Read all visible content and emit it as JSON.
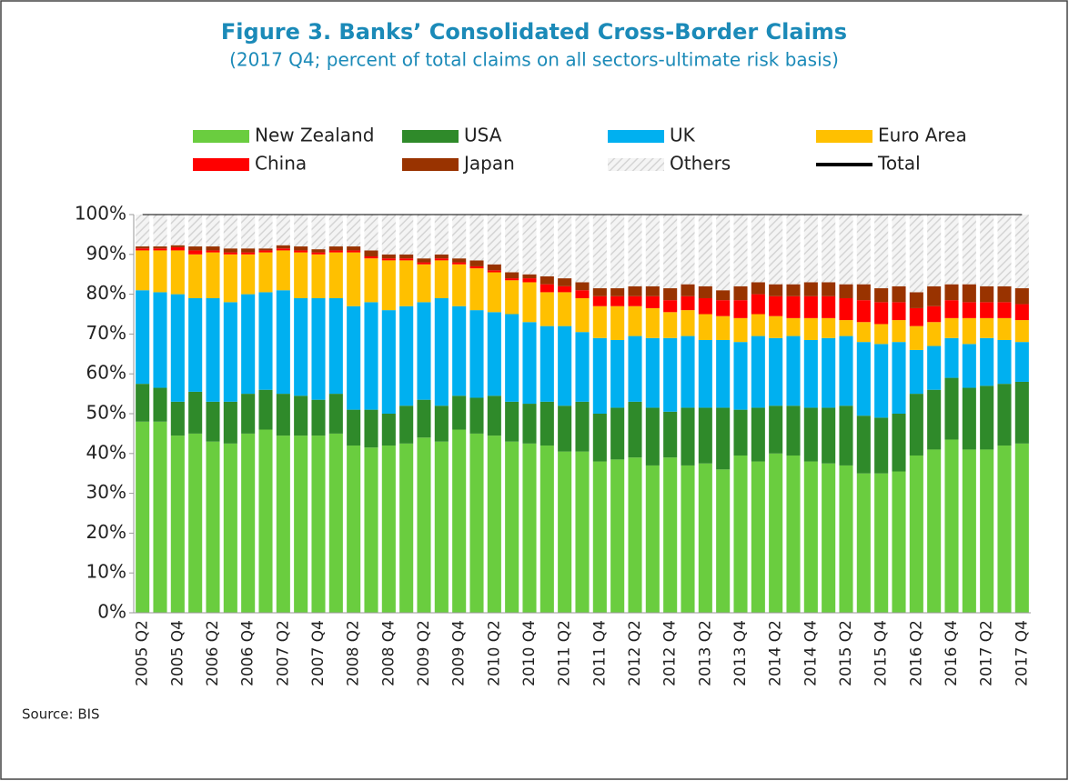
{
  "chart_data": {
    "type": "stacked_bar",
    "title": "Figure 3. Banks’ Consolidated Cross-Border Claims",
    "subtitle": "(2017 Q4; percent of total claims on all sectors-ultimate risk basis)",
    "source": "Source: BIS",
    "categories": [
      "2005 Q2",
      null,
      "2005 Q4",
      null,
      "2006 Q2",
      null,
      "2006 Q4",
      null,
      "2007 Q2",
      null,
      "2007 Q4",
      null,
      "2008 Q2",
      null,
      "2008 Q4",
      null,
      "2009 Q2",
      null,
      "2009 Q4",
      null,
      "2010 Q2",
      null,
      "2010 Q4",
      null,
      "2011 Q2",
      null,
      "2011 Q4",
      null,
      "2012 Q2",
      null,
      "2012 Q4",
      null,
      "2013 Q2",
      null,
      "2013 Q4",
      null,
      "2014 Q2",
      null,
      "2014 Q4",
      null,
      "2015 Q2",
      null,
      "2015 Q4",
      null,
      "2016 Q2",
      null,
      "2016 Q4",
      null,
      "2017 Q2",
      null,
      "2017 Q4"
    ],
    "ylim": [
      0,
      100
    ],
    "yticks": [
      {
        "value": 0,
        "label": "0%"
      },
      {
        "value": 10,
        "label": "10%"
      },
      {
        "value": 20,
        "label": "20%"
      },
      {
        "value": 30,
        "label": "30%"
      },
      {
        "value": 40,
        "label": "40%"
      },
      {
        "value": 50,
        "label": "50%"
      },
      {
        "value": 60,
        "label": "60%"
      },
      {
        "value": 70,
        "label": "70%"
      },
      {
        "value": 80,
        "label": "80%"
      },
      {
        "value": 90,
        "label": "90%"
      },
      {
        "value": 100,
        "label": "100%"
      }
    ],
    "legend": "top",
    "series": [
      {
        "name": "New Zealand",
        "color": "#6acd3f",
        "values": [
          48,
          48,
          44.5,
          45,
          43,
          42.5,
          45,
          46,
          44.5,
          44.5,
          44.5,
          45,
          42,
          41.5,
          42,
          42.5,
          44,
          43,
          46,
          45,
          44.5,
          43,
          42.5,
          42,
          40.5,
          40.5,
          38,
          38.5,
          39,
          37,
          39,
          37,
          37.5,
          36,
          39.5,
          38,
          40,
          39.5,
          38,
          37.5,
          37,
          35,
          35,
          35.5,
          39.5,
          41,
          43.5,
          41,
          41,
          42,
          42.5
        ]
      },
      {
        "name": "USA",
        "color": "#2f8a2a",
        "values": [
          9.5,
          8.5,
          8.5,
          10.5,
          10,
          10.5,
          10,
          10,
          10.5,
          10,
          9,
          10,
          9,
          9.5,
          8,
          9.5,
          9.5,
          9,
          8.5,
          9,
          10,
          10,
          10,
          11,
          11.5,
          12.5,
          12,
          13,
          14,
          14.5,
          11.5,
          14.5,
          14,
          15.5,
          11.5,
          13.5,
          12,
          12.5,
          13.5,
          14,
          15,
          14.5,
          14,
          14.5,
          15.5,
          15,
          15.5,
          15.5,
          16,
          15.5,
          15.5
        ]
      },
      {
        "name": "UK",
        "color": "#00b0f0",
        "values": [
          23.5,
          24,
          27,
          23.5,
          26,
          25,
          25,
          24.5,
          26,
          24.5,
          25.5,
          24,
          26,
          27,
          26,
          25,
          24.5,
          27,
          22.5,
          22,
          21,
          22,
          20.5,
          19,
          20,
          17.5,
          19,
          17,
          16.5,
          17.5,
          18.5,
          18,
          17,
          17,
          17,
          18,
          17,
          17.5,
          17,
          17.5,
          17.5,
          18.5,
          18.5,
          18,
          11,
          11,
          10,
          11,
          12,
          11,
          10
        ]
      },
      {
        "name": "Euro Area",
        "color": "#ffc000",
        "values": [
          10,
          10.5,
          11,
          11,
          11.5,
          12,
          10,
          10,
          10,
          11.5,
          11,
          11.5,
          13.5,
          11,
          12.5,
          11.5,
          9.5,
          9.5,
          10.5,
          10.5,
          10,
          8.5,
          10,
          8.5,
          8.5,
          8.5,
          8,
          8.5,
          7.5,
          7.5,
          6.5,
          6.5,
          6.5,
          6,
          6,
          5.5,
          5.5,
          4.5,
          5.5,
          5,
          4,
          5,
          5,
          5.5,
          6,
          6,
          5,
          6.5,
          5,
          5.5,
          5.5
        ]
      },
      {
        "name": "China",
        "color": "#ff0000",
        "values": [
          0.5,
          0.5,
          0.8,
          1,
          0.5,
          0.5,
          0.5,
          0.5,
          0.5,
          0.5,
          0.5,
          0.5,
          0.5,
          0.5,
          0.5,
          0.5,
          0.5,
          0.5,
          0.5,
          0.5,
          0.5,
          0.5,
          1,
          2,
          1.5,
          2,
          2.5,
          2.5,
          2.5,
          3,
          3,
          3.5,
          4,
          4,
          4.5,
          5,
          5,
          5.5,
          5.5,
          5.5,
          5.5,
          5.5,
          5.5,
          4.5,
          4.5,
          4,
          4.5,
          4,
          4,
          4,
          4
        ]
      },
      {
        "name": "Japan",
        "color": "#993300",
        "values": [
          0.5,
          0.5,
          0.5,
          1,
          1,
          1,
          1,
          0.5,
          0.8,
          1,
          0.8,
          1,
          1,
          1.5,
          1,
          1,
          1,
          1,
          1,
          1.5,
          1.5,
          1.5,
          1,
          2,
          2,
          2,
          2,
          2,
          2.5,
          2.5,
          3,
          3,
          3,
          2.5,
          3.5,
          3,
          3,
          3,
          3.5,
          3.5,
          3.5,
          4,
          3.5,
          4,
          4,
          5,
          4,
          4.5,
          4,
          4,
          4
        ]
      },
      {
        "name": "Others",
        "color": "#d4d4d4",
        "pattern": "hatch",
        "values": [
          8,
          8,
          7.7,
          8,
          8,
          8.5,
          8.5,
          8.5,
          7.7,
          8,
          8.7,
          8,
          8,
          9,
          10,
          10,
          11,
          10,
          11,
          11.5,
          12.5,
          14.5,
          15,
          15.5,
          16,
          17,
          18.5,
          18.5,
          18,
          18,
          18.5,
          17.5,
          18,
          19,
          18,
          17,
          17.5,
          17.5,
          17,
          17,
          17.5,
          17.5,
          18.5,
          18,
          19.5,
          18,
          17.5,
          17.5,
          18,
          18,
          18.5
        ]
      },
      {
        "name": "Total",
        "color": "#000000",
        "type": "line",
        "values": [
          100,
          100,
          100,
          100,
          100,
          100,
          100,
          100,
          100,
          100,
          100,
          100,
          100,
          100,
          100,
          100,
          100,
          100,
          100,
          100,
          100,
          100,
          100,
          100,
          100,
          100,
          100,
          100,
          100,
          100,
          100,
          100,
          100,
          100,
          100,
          100,
          100,
          100,
          100,
          100,
          100,
          100,
          100,
          100,
          100,
          100,
          100,
          100,
          100,
          100,
          100
        ]
      }
    ]
  }
}
